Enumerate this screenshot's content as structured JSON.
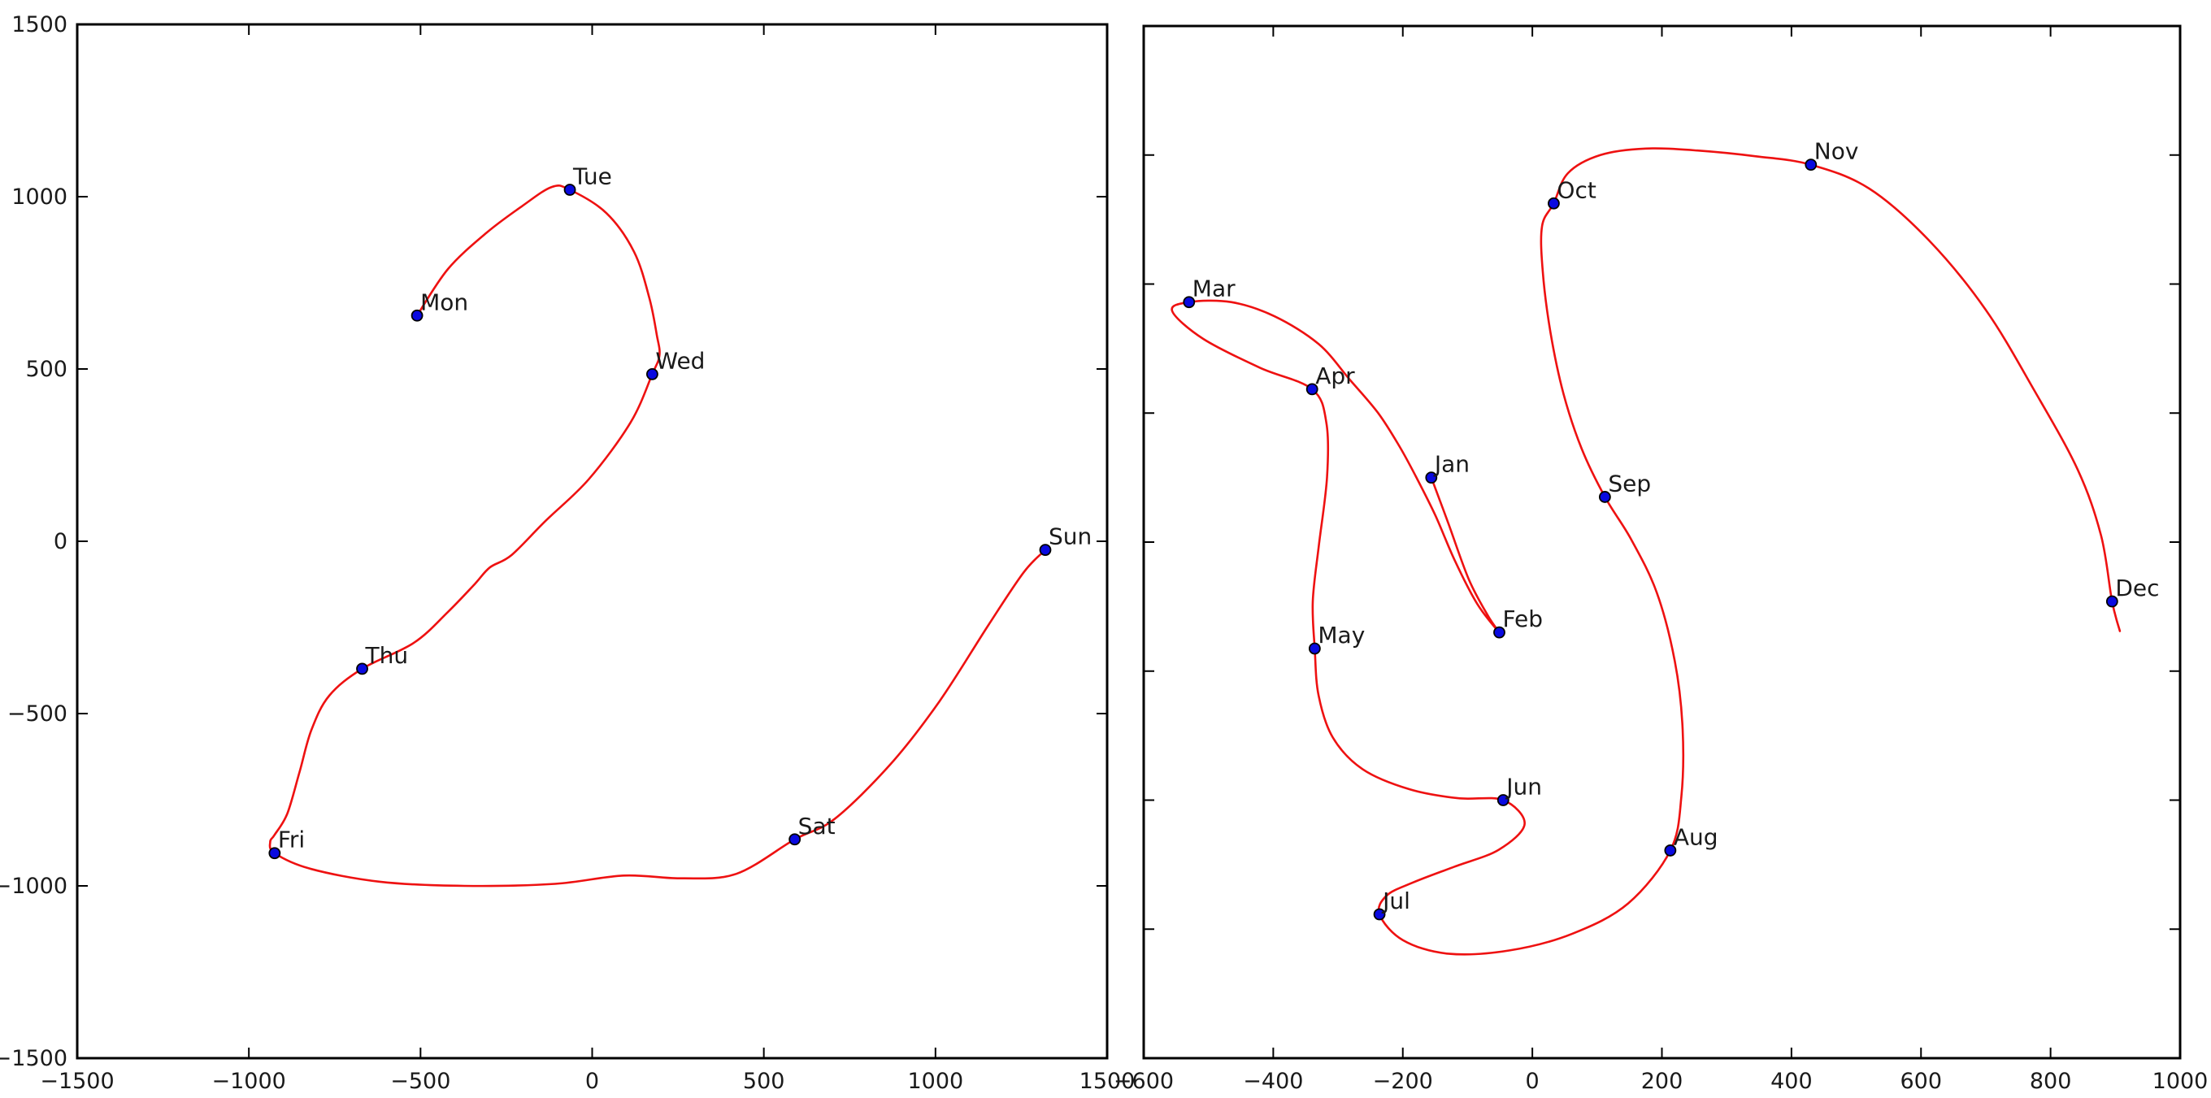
{
  "figure": {
    "background": "#ffffff",
    "curve_color": "#ee1111",
    "marker_fill": "#0a0ae0",
    "marker_edge": "#000000",
    "axis_color": "#000000",
    "text_color": "#1a1a1a"
  },
  "chart_data": [
    {
      "type": "line",
      "name": "day-signature",
      "title": "",
      "xlabel": "",
      "ylabel": "",
      "grid": false,
      "legend": null,
      "xlim": [
        -1500,
        1500
      ],
      "ylim": [
        -1500,
        1500
      ],
      "xticks": [
        -1500,
        -1000,
        -500,
        0,
        500,
        1000,
        1500
      ],
      "xtick_labels": [
        "−1500",
        "−1000",
        "−500",
        "0",
        "500",
        "1000",
        "1500"
      ],
      "yticks": [
        -1500,
        -1000,
        -500,
        0,
        500,
        1000,
        1500
      ],
      "ytick_labels": [
        "−1500",
        "−1000",
        "−500",
        "0",
        "500",
        "1000",
        "1500"
      ],
      "points": [
        {
          "label": "Mon",
          "x": -510,
          "y": 655
        },
        {
          "label": "Tue",
          "x": -65,
          "y": 1020
        },
        {
          "label": "Wed",
          "x": 175,
          "y": 485
        },
        {
          "label": "Thu",
          "x": -670,
          "y": -370
        },
        {
          "label": "Fri",
          "x": -925,
          "y": -905
        },
        {
          "label": "Sat",
          "x": 590,
          "y": -865
        },
        {
          "label": "Sun",
          "x": 1320,
          "y": -25
        }
      ],
      "path": [
        [
          -510,
          655
        ],
        [
          -420,
          790
        ],
        [
          -308,
          895
        ],
        [
          -205,
          972
        ],
        [
          -118,
          1028
        ],
        [
          -65,
          1020
        ],
        [
          42,
          952
        ],
        [
          122,
          840
        ],
        [
          166,
          708
        ],
        [
          188,
          600
        ],
        [
          196,
          540
        ],
        [
          175,
          485
        ],
        [
          112,
          345
        ],
        [
          -10,
          180
        ],
        [
          -135,
          60
        ],
        [
          -235,
          -40
        ],
        [
          -298,
          -76
        ],
        [
          -342,
          -124
        ],
        [
          -420,
          -205
        ],
        [
          -520,
          -295
        ],
        [
          -670,
          -370
        ],
        [
          -766,
          -448
        ],
        [
          -818,
          -548
        ],
        [
          -852,
          -668
        ],
        [
          -888,
          -790
        ],
        [
          -925,
          -852
        ],
        [
          -938,
          -872
        ],
        [
          -925,
          -905
        ],
        [
          -822,
          -950
        ],
        [
          -618,
          -988
        ],
        [
          -372,
          -1000
        ],
        [
          -108,
          -994
        ],
        [
          92,
          -970
        ],
        [
          258,
          -978
        ],
        [
          420,
          -965
        ],
        [
          590,
          -865
        ],
        [
          706,
          -806
        ],
        [
          868,
          -648
        ],
        [
          1012,
          -464
        ],
        [
          1155,
          -242
        ],
        [
          1257,
          -90
        ],
        [
          1320,
          -25
        ]
      ]
    },
    {
      "type": "line",
      "name": "month-signature",
      "title": "",
      "xlabel": "",
      "ylabel": "",
      "grid": false,
      "legend": null,
      "xlim": [
        -600,
        1000
      ],
      "ylim": [
        -800,
        800
      ],
      "xticks": [
        -600,
        -400,
        -200,
        0,
        200,
        400,
        600,
        800,
        1000
      ],
      "xtick_labels": [
        "−600",
        "−400",
        "−200",
        "0",
        "200",
        "400",
        "600",
        "800",
        "1000"
      ],
      "yticks": [
        -800,
        -600,
        -400,
        -200,
        0,
        200,
        400,
        600,
        800
      ],
      "ytick_labels": [],
      "points": [
        {
          "label": "Jan",
          "x": -156,
          "y": 100
        },
        {
          "label": "Feb",
          "x": -51,
          "y": -140
        },
        {
          "label": "Mar",
          "x": -530,
          "y": 372
        },
        {
          "label": "Apr",
          "x": -340,
          "y": 237
        },
        {
          "label": "May",
          "x": -336,
          "y": -165
        },
        {
          "label": "Jun",
          "x": -45,
          "y": -400
        },
        {
          "label": "Jul",
          "x": -236,
          "y": -577
        },
        {
          "label": "Aug",
          "x": 213,
          "y": -478
        },
        {
          "label": "Sep",
          "x": 112,
          "y": 70
        },
        {
          "label": "Oct",
          "x": 33,
          "y": 525
        },
        {
          "label": "Nov",
          "x": 430,
          "y": 585
        },
        {
          "label": "Dec",
          "x": 895,
          "y": -92
        }
      ],
      "path": [
        [
          -156,
          100
        ],
        [
          -130,
          30
        ],
        [
          -98,
          -58
        ],
        [
          -68,
          -115
        ],
        [
          -51,
          -140
        ],
        [
          -85,
          -96
        ],
        [
          -120,
          -28
        ],
        [
          -150,
          42
        ],
        [
          -180,
          102
        ],
        [
          -205,
          148
        ],
        [
          -238,
          200
        ],
        [
          -282,
          252
        ],
        [
          -330,
          307
        ],
        [
          -398,
          350
        ],
        [
          -465,
          372
        ],
        [
          -530,
          372
        ],
        [
          -556,
          358
        ],
        [
          -508,
          315
        ],
        [
          -420,
          270
        ],
        [
          -340,
          237
        ],
        [
          -318,
          185
        ],
        [
          -317,
          100
        ],
        [
          -330,
          -8
        ],
        [
          -339,
          -92
        ],
        [
          -336,
          -165
        ],
        [
          -330,
          -238
        ],
        [
          -308,
          -303
        ],
        [
          -262,
          -352
        ],
        [
          -190,
          -383
        ],
        [
          -115,
          -397
        ],
        [
          -45,
          -400
        ],
        [
          -12,
          -437
        ],
        [
          -52,
          -477
        ],
        [
          -120,
          -503
        ],
        [
          -185,
          -528
        ],
        [
          -225,
          -548
        ],
        [
          -236,
          -577
        ],
        [
          -200,
          -617
        ],
        [
          -130,
          -638
        ],
        [
          -35,
          -633
        ],
        [
          62,
          -607
        ],
        [
          148,
          -560
        ],
        [
          213,
          -478
        ],
        [
          230,
          -395
        ],
        [
          232,
          -290
        ],
        [
          220,
          -185
        ],
        [
          192,
          -78
        ],
        [
          152,
          5
        ],
        [
          112,
          70
        ],
        [
          76,
          145
        ],
        [
          48,
          230
        ],
        [
          28,
          325
        ],
        [
          16,
          420
        ],
        [
          15,
          490
        ],
        [
          33,
          525
        ],
        [
          55,
          572
        ],
        [
          105,
          600
        ],
        [
          175,
          610
        ],
        [
          255,
          607
        ],
        [
          345,
          598
        ],
        [
          430,
          585
        ],
        [
          520,
          548
        ],
        [
          612,
          468
        ],
        [
          700,
          360
        ],
        [
          775,
          235
        ],
        [
          842,
          112
        ],
        [
          878,
          10
        ],
        [
          895,
          -92
        ],
        [
          907,
          -138
        ]
      ]
    }
  ]
}
